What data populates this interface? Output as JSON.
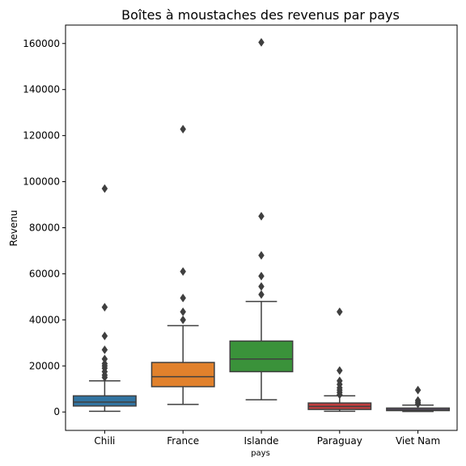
{
  "chart_data": {
    "type": "box",
    "title": "Boîtes à moustaches des revenus par pays",
    "xlabel": "pays",
    "ylabel": "Revenu",
    "ylim": [
      -8000,
      168000
    ],
    "yticks": [
      0,
      20000,
      40000,
      60000,
      80000,
      100000,
      120000,
      140000,
      160000
    ],
    "ytick_labels": [
      "0",
      "20000",
      "40000",
      "60000",
      "80000",
      "100000",
      "120000",
      "140000",
      "160000"
    ],
    "grid": false,
    "legend": "none",
    "categories": [
      "Chili",
      "France",
      "Islande",
      "Paraguay",
      "Viet Nam"
    ],
    "boxes": [
      {
        "category": "Chili",
        "whisker_low": 300,
        "q1": 2600,
        "median": 4300,
        "q3": 7000,
        "whisker_high": 13500,
        "color": "#3274a1",
        "outliers": [
          15000,
          16000,
          17500,
          19000,
          20000,
          21000,
          23000,
          27000,
          33000,
          45500,
          97000
        ]
      },
      {
        "category": "France",
        "whisker_low": 3300,
        "q1": 11000,
        "median": 15300,
        "q3": 21500,
        "whisker_high": 37500,
        "color": "#e1812c",
        "outliers": [
          40000,
          43500,
          49500,
          61000,
          122800
        ]
      },
      {
        "category": "Islande",
        "whisker_low": 5300,
        "q1": 17500,
        "median": 23000,
        "q3": 30800,
        "whisker_high": 48000,
        "color": "#3a923a",
        "outliers": [
          51000,
          54500,
          59000,
          68000,
          85000,
          160500
        ]
      },
      {
        "category": "Paraguay",
        "whisker_low": 300,
        "q1": 1100,
        "median": 2400,
        "q3": 3900,
        "whisker_high": 7000,
        "color": "#c03d3e",
        "outliers": [
          7500,
          8500,
          9500,
          10500,
          12000,
          13500,
          18000,
          43500
        ]
      },
      {
        "category": "Viet Nam",
        "whisker_low": 200,
        "q1": 600,
        "median": 1100,
        "q3": 1700,
        "whisker_high": 3000,
        "color": "#9372b2",
        "outliers": [
          3500,
          4200,
          5000,
          9500
        ]
      }
    ]
  }
}
